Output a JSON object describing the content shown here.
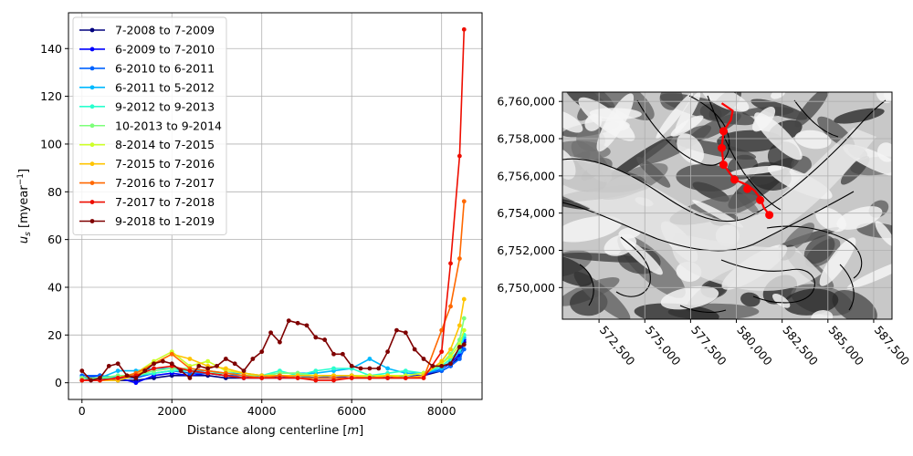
{
  "chart_data": [
    {
      "type": "line",
      "xlabel_main": "Distance along centerline [",
      "xlabel_unit": "m",
      "xlabel_close": "]",
      "ylabel_sym": "u",
      "ylabel_sub": "s",
      "ylabel_unit": " [myear",
      "ylabel_sup": "−1",
      "ylabel_close": "]",
      "xlim": [
        -300,
        8900
      ],
      "ylim": [
        -7,
        155
      ],
      "xticks": [
        0,
        2000,
        4000,
        6000,
        8000
      ],
      "xtick_labels": [
        "0",
        "2000",
        "4000",
        "6000",
        "8000"
      ],
      "yticks": [
        0,
        20,
        40,
        60,
        80,
        100,
        120,
        140
      ],
      "ytick_labels": [
        "0",
        "20",
        "40",
        "60",
        "80",
        "100",
        "120",
        "140"
      ],
      "grid": true,
      "legend_position": "top-left",
      "x": [
        0,
        200,
        400,
        600,
        800,
        1000,
        1200,
        1400,
        1600,
        1800,
        2000,
        2200,
        2400,
        2600,
        2800,
        3000,
        3200,
        3400,
        3600,
        3800,
        4000,
        4200,
        4400,
        4600,
        4800,
        5000,
        5200,
        5400,
        5600,
        5800,
        6000,
        6200,
        6400,
        6600,
        6800,
        7000,
        7200,
        7400,
        7600,
        7800,
        8000,
        8200,
        8400,
        8500
      ],
      "series": [
        {
          "name": "7-2008 to 7-2009",
          "color": "#00007f",
          "x": [
            0,
            400,
            800,
            1200,
            1600,
            2000,
            2400,
            2800,
            3200,
            3600,
            4000,
            4400,
            4800,
            5200,
            5600,
            6000,
            6400,
            6800,
            7200,
            7600,
            8000,
            8200,
            8400,
            8500
          ],
          "values": [
            1,
            2,
            1,
            1,
            2,
            3,
            3,
            3,
            2,
            2,
            2,
            2,
            2,
            2,
            2,
            2,
            2,
            2,
            2,
            3,
            5,
            7,
            11,
            17
          ]
        },
        {
          "name": "6-2009 to 7-2010",
          "color": "#0000ff",
          "x": [
            0,
            400,
            800,
            1200,
            1600,
            2000,
            2400,
            2800,
            3200,
            3600,
            4000,
            4400,
            4800,
            5200,
            5600,
            6000,
            6400,
            6800,
            7200,
            7600,
            8000,
            8200,
            8400,
            8500
          ],
          "values": [
            2,
            3,
            2,
            0,
            3,
            4,
            3,
            4,
            3,
            2,
            3,
            2,
            3,
            2,
            2,
            3,
            3,
            2,
            3,
            3,
            6,
            8,
            12,
            18
          ]
        },
        {
          "name": "6-2010 to 6-2011",
          "color": "#0063ff",
          "x": [
            0,
            400,
            800,
            1200,
            1600,
            2000,
            2400,
            2800,
            3200,
            3600,
            4000,
            4400,
            4800,
            5200,
            5600,
            6000,
            6400,
            6800,
            7200,
            7600,
            8000,
            8200,
            8400,
            8500
          ],
          "values": [
            3,
            3,
            2,
            2,
            4,
            5,
            4,
            4,
            3,
            3,
            3,
            3,
            3,
            2,
            3,
            3,
            3,
            3,
            3,
            4,
            5,
            7,
            10,
            14
          ]
        },
        {
          "name": "6-2011 to 5-2012",
          "color": "#00b9ff",
          "x": [
            0,
            400,
            800,
            1200,
            1600,
            2000,
            2400,
            2800,
            3200,
            3600,
            4000,
            4400,
            4800,
            5200,
            5600,
            6000,
            6400,
            6800,
            7200,
            7600,
            8000,
            8200,
            8400,
            8500
          ],
          "values": [
            2,
            2,
            5,
            5,
            6,
            6,
            5,
            5,
            4,
            4,
            3,
            4,
            4,
            4,
            5,
            6,
            10,
            6,
            4,
            4,
            6,
            9,
            13,
            19
          ]
        },
        {
          "name": "9-2012 to 9-2013",
          "color": "#29ffce",
          "x": [
            0,
            400,
            800,
            1200,
            1600,
            2000,
            2400,
            2800,
            3200,
            3600,
            4000,
            4400,
            4800,
            5200,
            5600,
            6000,
            6400,
            6800,
            7200,
            7600,
            8000,
            8200,
            8400,
            8500
          ],
          "values": [
            2,
            2,
            2,
            3,
            4,
            5,
            5,
            4,
            4,
            3,
            3,
            5,
            3,
            5,
            6,
            6,
            3,
            4,
            5,
            4,
            7,
            10,
            14,
            20
          ]
        },
        {
          "name": "10-2013 to 9-2014",
          "color": "#7dff7a",
          "x": [
            0,
            400,
            800,
            1200,
            1600,
            2000,
            2400,
            2800,
            3200,
            3600,
            4000,
            4400,
            4800,
            5200,
            5600,
            6000,
            6400,
            6800,
            7200,
            7600,
            8000,
            8200,
            8400,
            8500
          ],
          "values": [
            2,
            2,
            3,
            3,
            5,
            6,
            6,
            5,
            4,
            3,
            3,
            4,
            4,
            3,
            3,
            3,
            2,
            3,
            3,
            4,
            8,
            12,
            18,
            27
          ]
        },
        {
          "name": "8-2014 to 7-2015",
          "color": "#ceff29",
          "x": [
            0,
            400,
            800,
            1200,
            1600,
            2000,
            2400,
            2800,
            3200,
            3600,
            4000,
            4400,
            4800,
            5200,
            5600,
            6000,
            6400,
            6800,
            7200,
            7600,
            8000,
            8200,
            8400,
            8500
          ],
          "values": [
            1,
            1,
            2,
            4,
            9,
            13,
            7,
            9,
            5,
            4,
            3,
            3,
            3,
            3,
            3,
            3,
            3,
            3,
            3,
            4,
            8,
            11,
            16,
            22
          ]
        },
        {
          "name": "7-2015 to 7-2016",
          "color": "#ffc400",
          "x": [
            0,
            400,
            800,
            1200,
            1600,
            2000,
            2400,
            2800,
            3200,
            3600,
            4000,
            4400,
            4800,
            5200,
            5600,
            6000,
            6400,
            6800,
            7200,
            7600,
            8000,
            8200,
            8400,
            8500
          ],
          "values": [
            1,
            1,
            1,
            3,
            8,
            12,
            10,
            7,
            6,
            4,
            3,
            3,
            3,
            3,
            3,
            3,
            2,
            3,
            2,
            3,
            9,
            14,
            24,
            35
          ]
        },
        {
          "name": "7-2016 to 7-2017",
          "color": "#ff6800",
          "x": [
            0,
            400,
            800,
            1200,
            1600,
            2000,
            2400,
            2800,
            3200,
            3600,
            4000,
            4400,
            4800,
            5200,
            5600,
            6000,
            6400,
            6800,
            7200,
            7600,
            8000,
            8200,
            8400,
            8500
          ],
          "values": [
            1,
            1,
            2,
            4,
            8,
            12,
            6,
            5,
            4,
            3,
            2,
            3,
            2,
            2,
            2,
            2,
            2,
            2,
            2,
            2,
            22,
            32,
            52,
            76
          ]
        },
        {
          "name": "7-2017 to 7-2018",
          "color": "#ee0d00",
          "x": [
            0,
            400,
            800,
            1200,
            1600,
            2000,
            2400,
            2800,
            3200,
            3600,
            4000,
            4400,
            4800,
            5200,
            5600,
            6000,
            6400,
            6800,
            7200,
            7600,
            8000,
            8200,
            8400,
            8500
          ],
          "values": [
            1,
            1,
            2,
            3,
            6,
            7,
            5,
            4,
            3,
            2,
            2,
            2,
            2,
            1,
            1,
            2,
            2,
            2,
            2,
            2,
            13,
            50,
            95,
            148
          ]
        },
        {
          "name": "9-2018 to 1-2019",
          "color": "#7f0000",
          "x": [
            0,
            200,
            400,
            600,
            800,
            1000,
            1200,
            1400,
            1600,
            1800,
            2000,
            2200,
            2400,
            2600,
            2800,
            3000,
            3200,
            3400,
            3600,
            3800,
            4000,
            4200,
            4400,
            4600,
            4800,
            5000,
            5200,
            5400,
            5600,
            5800,
            6000,
            6200,
            6400,
            6600,
            6800,
            7000,
            7200,
            7400,
            7600,
            7800,
            8000,
            8200,
            8400,
            8500
          ],
          "values": [
            5,
            1,
            2,
            7,
            8,
            3,
            2,
            5,
            8,
            9,
            8,
            5,
            2,
            7,
            6,
            7,
            10,
            8,
            5,
            10,
            13,
            21,
            17,
            26,
            25,
            24,
            19,
            18,
            12,
            12,
            7,
            6,
            6,
            6,
            13,
            22,
            21,
            14,
            10,
            7,
            7,
            8,
            15,
            16
          ]
        }
      ]
    },
    {
      "type": "map",
      "description_hidden": "",
      "xlim": [
        570500,
        588500
      ],
      "ylim": [
        6748300,
        6760500
      ],
      "xticks": [
        572500,
        575000,
        577500,
        580000,
        582500,
        585000,
        587500
      ],
      "xtick_labels": [
        "572,500",
        "575,000",
        "577,500",
        "580,000",
        "582,500",
        "585,000",
        "587,500"
      ],
      "yticks": [
        6750000,
        6752000,
        6754000,
        6756000,
        6758000,
        6760000
      ],
      "ytick_labels": [
        "6,750,000",
        "6,752,000",
        "6,754,000",
        "6,756,000",
        "6,758,000",
        "6,760,000"
      ],
      "grid": true,
      "centerline_color": "#ff0000",
      "centerline": [
        [
          579200,
          6759900
        ],
        [
          579800,
          6759500
        ],
        [
          579700,
          6759000
        ],
        [
          579300,
          6758400
        ],
        [
          579200,
          6757500
        ],
        [
          579300,
          6756600
        ],
        [
          579900,
          6755800
        ],
        [
          580600,
          6755500
        ],
        [
          581000,
          6755200
        ],
        [
          581300,
          6754800
        ],
        [
          581500,
          6754300
        ],
        [
          581800,
          6753900
        ]
      ],
      "centerline_markers": [
        [
          579300,
          6758400
        ],
        [
          579200,
          6757500
        ],
        [
          579300,
          6756600
        ],
        [
          579900,
          6755800
        ],
        [
          580600,
          6755300
        ],
        [
          581300,
          6754700
        ],
        [
          581800,
          6753900
        ]
      ]
    }
  ]
}
